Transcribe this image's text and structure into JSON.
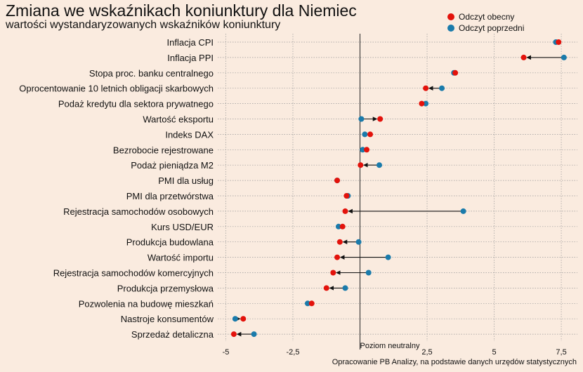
{
  "header": {
    "title": "Zmiana we wskaźnikach koniunktury dla Niemiec",
    "subtitle": "wartości wystandaryzowanych wskaźników koniunktury"
  },
  "legend": {
    "current_label": "Odczyt obecny",
    "previous_label": "Odczyt poprzedni"
  },
  "colors": {
    "background": "#faebdf",
    "current": "#e3120b",
    "previous": "#1a7bab",
    "grid": "#9a9a9a",
    "zero_line": "#222222"
  },
  "caption": "Opracowanie PB Analizy, na podstawie danych urzędów statystycznych",
  "chart_data": {
    "type": "dot",
    "title": "Zmiana we wskaźnikach koniunktury dla Niemiec",
    "subtitle": "wartości wystandaryzowanych wskaźników koniunktury",
    "x_label": "",
    "y_label": "",
    "xlim": [
      -5.3,
      8.1
    ],
    "x_ticks": [
      -5,
      -2.5,
      0,
      2.5,
      5,
      7.5
    ],
    "x_tick_labels": [
      "-5",
      "-2,5",
      "",
      "2,5",
      "5",
      "7,5"
    ],
    "neutral_line": {
      "x": 0,
      "label": "Poziom neutralny"
    },
    "grid": true,
    "legend_position": "top-right",
    "categories": [
      "Inflacja CPI",
      "Inflacja PPI",
      "Stopa proc. banku centralnego",
      "Oprocentowanie 10 letnich obligacji skarbowych",
      "Podaż kredytu dla sektora prywatnego",
      "Wartość eksportu",
      "Indeks DAX",
      "Bezrobocie rejestrowane",
      "Podaż pieniądza M2",
      "PMI dla usług",
      "PMI dla przetwórstwa",
      "Rejestracja samochodów osobowych",
      "Kurs USD/EUR",
      "Produkcja budowlana",
      "Wartość importu",
      "Rejestracja samochodów komercyjnych",
      "Produkcja przemysłowa",
      "Pozwolenia na budowę mieszkań",
      "Nastroje konsumentów",
      "Sprzedaż detaliczna"
    ],
    "series": [
      {
        "name": "Odczyt obecny",
        "color": "#e3120b",
        "values": [
          7.4,
          6.1,
          3.55,
          2.45,
          2.3,
          0.75,
          0.38,
          0.25,
          0.02,
          -0.85,
          -0.5,
          -0.55,
          -0.65,
          -0.75,
          -0.85,
          -1.0,
          -1.25,
          -1.8,
          -4.35,
          -4.7
        ]
      },
      {
        "name": "Odczyt poprzedni",
        "color": "#1a7bab",
        "values": [
          7.3,
          7.6,
          3.5,
          3.05,
          2.45,
          0.05,
          0.18,
          0.1,
          0.72,
          -0.85,
          -0.45,
          3.85,
          -0.8,
          -0.05,
          1.05,
          0.32,
          -0.55,
          -1.95,
          -4.65,
          -3.95
        ]
      }
    ]
  }
}
